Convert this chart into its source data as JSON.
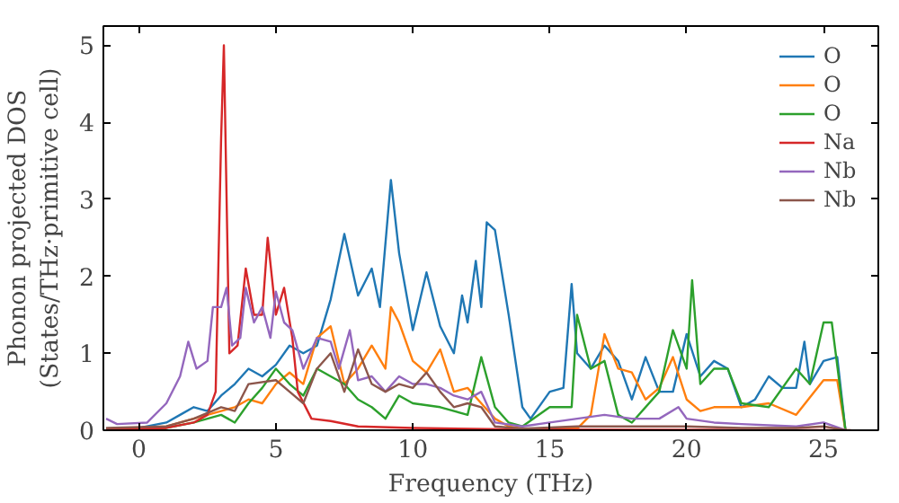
{
  "chart_data": {
    "type": "line",
    "xlabel": "Frequency (THz)",
    "ylabel": "Phonon projected DOS\n(States/THz·primitive cell)",
    "xlim": [
      -1.3,
      27.0
    ],
    "ylim": [
      0,
      5.25
    ],
    "xticks": [
      0,
      5,
      10,
      15,
      20,
      25
    ],
    "yticks": [
      0,
      1,
      2,
      3,
      4,
      5
    ],
    "grid": false,
    "legend": "top right",
    "marker": "none",
    "line_style": "solid",
    "series": [
      {
        "name": "O",
        "color": "#1f77b4",
        "x": [
          -1.2,
          0,
          1,
          1.5,
          2,
          2.5,
          3,
          3.5,
          4,
          4.5,
          5,
          5.5,
          6,
          6.5,
          7,
          7.5,
          8,
          8.5,
          8.8,
          9.2,
          9.5,
          10,
          10.5,
          11,
          11.5,
          11.8,
          12,
          12.3,
          12.5,
          12.7,
          13,
          13.5,
          14,
          14.3,
          15,
          15.5,
          15.8,
          16,
          16.5,
          17,
          17.5,
          18,
          18.5,
          19,
          19.5,
          20,
          20.5,
          21,
          21.5,
          22,
          22.5,
          23,
          23.5,
          24,
          24.3,
          24.5,
          25,
          25.5,
          25.8
        ],
        "values": [
          0.02,
          0.03,
          0.1,
          0.2,
          0.3,
          0.25,
          0.45,
          0.6,
          0.8,
          0.7,
          0.85,
          1.1,
          1.0,
          1.1,
          1.7,
          2.55,
          1.75,
          2.1,
          1.6,
          3.25,
          2.3,
          1.3,
          2.05,
          1.35,
          1.0,
          1.75,
          1.4,
          2.2,
          1.6,
          2.7,
          2.6,
          1.5,
          0.3,
          0.15,
          0.5,
          0.55,
          1.9,
          1.0,
          0.8,
          1.1,
          0.9,
          0.4,
          0.95,
          0.5,
          0.5,
          1.25,
          0.7,
          0.9,
          0.8,
          0.3,
          0.4,
          0.7,
          0.55,
          0.55,
          1.15,
          0.6,
          0.9,
          0.95,
          0
        ]
      },
      {
        "name": "O",
        "color": "#ff7f0e",
        "x": [
          -1.2,
          1,
          2,
          3,
          3.5,
          4,
          4.5,
          5,
          5.5,
          6,
          6.5,
          7,
          7.5,
          8,
          8.5,
          9,
          9.2,
          9.5,
          10,
          10.5,
          11,
          11.5,
          12,
          12.5,
          13,
          13.5,
          14,
          15,
          16,
          16.5,
          17,
          17.5,
          18,
          18.5,
          19,
          19.5,
          20,
          20.5,
          21,
          22,
          23,
          24,
          25,
          25.5,
          25.8
        ],
        "values": [
          0.01,
          0.05,
          0.15,
          0.25,
          0.3,
          0.4,
          0.35,
          0.6,
          0.75,
          0.6,
          1.2,
          1.35,
          0.6,
          0.8,
          1.1,
          0.8,
          1.6,
          1.4,
          0.9,
          0.75,
          1.05,
          0.5,
          0.55,
          0.35,
          0.15,
          0.05,
          0.02,
          0.02,
          0.02,
          0.2,
          1.25,
          0.8,
          0.75,
          0.4,
          0.55,
          0.95,
          0.4,
          0.25,
          0.3,
          0.3,
          0.35,
          0.2,
          0.65,
          0.65,
          0
        ]
      },
      {
        "name": "O",
        "color": "#2ca02c",
        "x": [
          -1.2,
          1,
          2,
          3,
          3.5,
          4,
          4.5,
          5,
          5.5,
          6,
          6.5,
          7,
          7.5,
          8,
          8.5,
          9,
          9.5,
          10,
          11,
          12,
          12.5,
          13,
          13.5,
          14,
          15,
          15.8,
          16,
          16.5,
          17,
          17.5,
          18,
          19,
          19.5,
          20,
          20.2,
          20.5,
          21,
          21.5,
          22,
          23,
          24,
          24.5,
          25,
          25.3,
          25.8
        ],
        "values": [
          0.01,
          0.03,
          0.1,
          0.2,
          0.1,
          0.35,
          0.55,
          0.8,
          0.6,
          0.45,
          0.8,
          0.7,
          0.6,
          0.4,
          0.3,
          0.15,
          0.45,
          0.35,
          0.3,
          0.2,
          0.95,
          0.3,
          0.1,
          0.05,
          0.3,
          0.3,
          1.5,
          0.8,
          0.9,
          0.2,
          0.1,
          0.5,
          1.3,
          0.8,
          1.95,
          0.6,
          0.8,
          0.8,
          0.35,
          0.3,
          0.8,
          0.6,
          1.4,
          1.4,
          0
        ]
      },
      {
        "name": "Na",
        "color": "#d62728",
        "x": [
          -1.2,
          1,
          2,
          2.5,
          2.8,
          3,
          3.1,
          3.3,
          3.6,
          3.9,
          4.2,
          4.5,
          4.7,
          5.0,
          5.3,
          5.6,
          5.8,
          6.3,
          7,
          8,
          10,
          14,
          26
        ],
        "values": [
          0.01,
          0.03,
          0.1,
          0.2,
          0.5,
          3.8,
          5.0,
          1.0,
          1.1,
          2.1,
          1.5,
          1.5,
          2.5,
          1.5,
          1.85,
          1.2,
          0.5,
          0.15,
          0.12,
          0.05,
          0.03,
          0.01,
          0
        ]
      },
      {
        "name": "Nb",
        "color": "#9467bd",
        "x": [
          -1.2,
          -0.8,
          0.3,
          1,
          1.5,
          1.8,
          2.1,
          2.5,
          2.7,
          3,
          3.2,
          3.4,
          3.7,
          3.9,
          4.2,
          4.5,
          4.8,
          5,
          5.3,
          5.6,
          6,
          6.5,
          7,
          7.3,
          7.7,
          8,
          8.5,
          9,
          9.5,
          10,
          10.5,
          11,
          11.5,
          12,
          12.5,
          13,
          14,
          15,
          16,
          17,
          18,
          19,
          19.7,
          20,
          21,
          22,
          24,
          25,
          25.8
        ],
        "values": [
          0.15,
          0.08,
          0.1,
          0.35,
          0.7,
          1.15,
          0.8,
          0.9,
          1.6,
          1.6,
          1.85,
          1.1,
          1.2,
          1.85,
          1.4,
          1.6,
          1.2,
          1.8,
          1.4,
          1.3,
          0.8,
          1.2,
          1.15,
          0.8,
          1.3,
          0.65,
          0.7,
          0.5,
          0.7,
          0.6,
          0.6,
          0.55,
          0.45,
          0.4,
          0.5,
          0.1,
          0.05,
          0.1,
          0.15,
          0.2,
          0.15,
          0.15,
          0.3,
          0.15,
          0.1,
          0.08,
          0.05,
          0.1,
          0
        ]
      },
      {
        "name": "Nb",
        "color": "#8c564b",
        "x": [
          -1.2,
          1,
          2,
          3,
          3.5,
          4,
          5,
          5.5,
          6,
          6.5,
          7,
          7.5,
          8,
          8.5,
          9,
          9.5,
          10,
          10.5,
          11,
          11.5,
          12,
          12.5,
          13,
          14,
          16,
          18,
          20,
          22,
          24,
          25,
          25.8
        ],
        "values": [
          0.03,
          0.05,
          0.15,
          0.3,
          0.25,
          0.6,
          0.65,
          0.5,
          0.35,
          0.8,
          1.0,
          0.5,
          1.05,
          0.6,
          0.5,
          0.6,
          0.55,
          0.75,
          0.5,
          0.3,
          0.35,
          0.3,
          0.05,
          0.02,
          0.05,
          0.05,
          0.05,
          0.03,
          0.03,
          0.05,
          0
        ]
      }
    ]
  }
}
